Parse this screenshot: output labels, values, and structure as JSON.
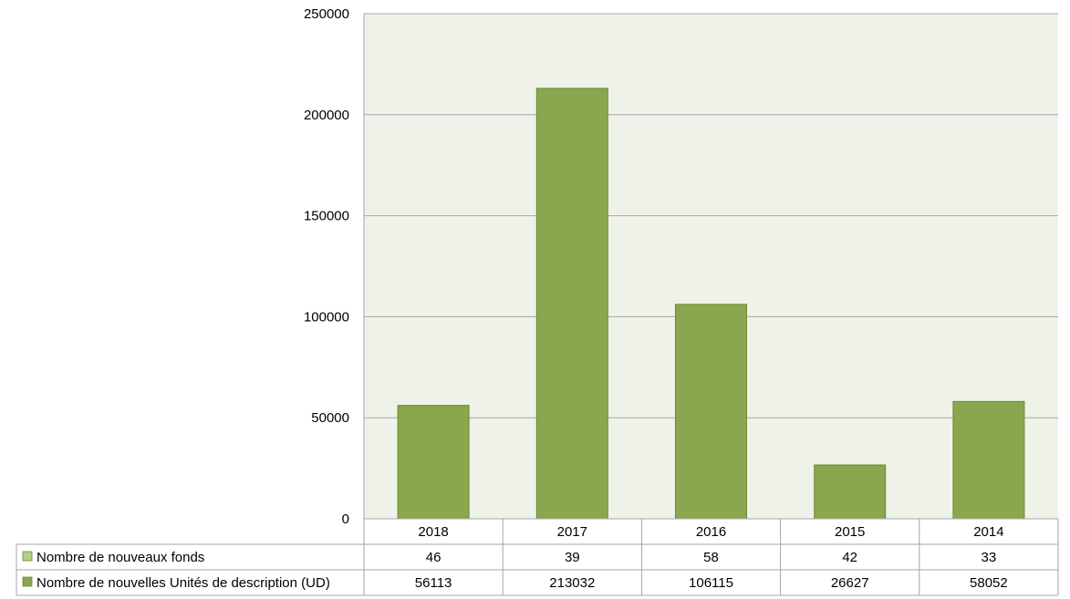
{
  "chart_data": {
    "type": "bar",
    "categories": [
      "2018",
      "2017",
      "2016",
      "2015",
      "2014"
    ],
    "series": [
      {
        "name": "Nombre de nouveaux fonds",
        "values": [
          46,
          39,
          58,
          42,
          33
        ],
        "color": "#b5cf8a"
      },
      {
        "name": "Nombre de nouvelles Unités de description (UD)",
        "values": [
          56113,
          213032,
          106115,
          26627,
          58052
        ],
        "color": "#8aa74e"
      }
    ],
    "ylim": [
      0,
      250000
    ],
    "yticks": [
      "0",
      "50000",
      "100000",
      "150000",
      "200000",
      "250000"
    ],
    "table": {
      "rows": [
        {
          "label": "Nombre de nouveaux fonds",
          "cells": [
            "46",
            "39",
            "58",
            "42",
            "33"
          ]
        },
        {
          "label": "Nombre de nouvelles Unités de description (UD)",
          "cells": [
            "56113",
            "213032",
            "106115",
            "26627",
            "58052"
          ]
        }
      ]
    },
    "grid": true,
    "legend": "data-table",
    "colors": {
      "plot_background": "#eff2e9",
      "bar_stroke": "#6b8a33",
      "gridline": "#a6a6a6"
    }
  }
}
